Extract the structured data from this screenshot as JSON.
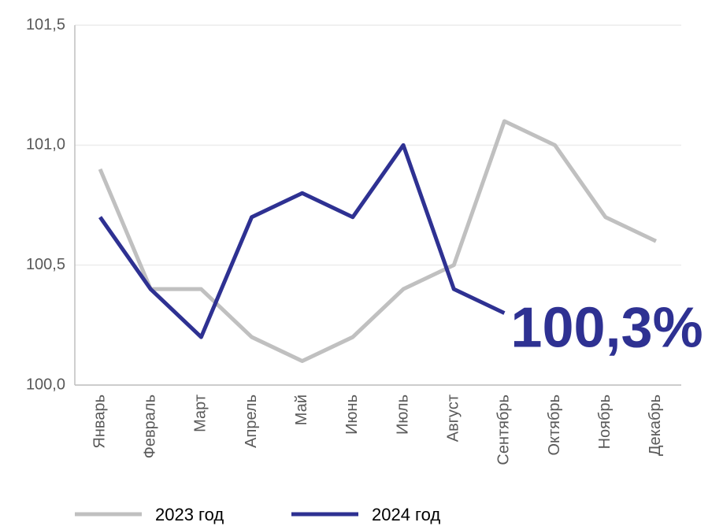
{
  "chart_data": {
    "type": "line",
    "categories": [
      "Январь",
      "Февраль",
      "Март",
      "Апрель",
      "Май",
      "Июнь",
      "Июль",
      "Август",
      "Сентябрь",
      "Октябрь",
      "Ноябрь",
      "Декабрь"
    ],
    "series": [
      {
        "name": "2023 год",
        "color": "#c0c0c0",
        "values": [
          100.9,
          100.4,
          100.4,
          100.2,
          100.1,
          100.2,
          100.4,
          100.5,
          101.1,
          101.0,
          100.7,
          100.6
        ]
      },
      {
        "name": "2024 год",
        "color": "#2e3192",
        "values": [
          100.7,
          100.4,
          100.2,
          100.7,
          100.8,
          100.7,
          101.0,
          100.4,
          100.3,
          null,
          null,
          null
        ],
        "value_labels": [
          null,
          null,
          null,
          null,
          null,
          null,
          null,
          null,
          "100,3%",
          null,
          null,
          null
        ]
      }
    ],
    "ylim": [
      100.0,
      101.5
    ],
    "yticks": [
      {
        "value": 100.0,
        "label": "100,0"
      },
      {
        "value": 100.5,
        "label": "100,5"
      },
      {
        "value": 101.0,
        "label": "101,0"
      },
      {
        "value": 101.5,
        "label": "101,5"
      }
    ],
    "grid": true
  }
}
